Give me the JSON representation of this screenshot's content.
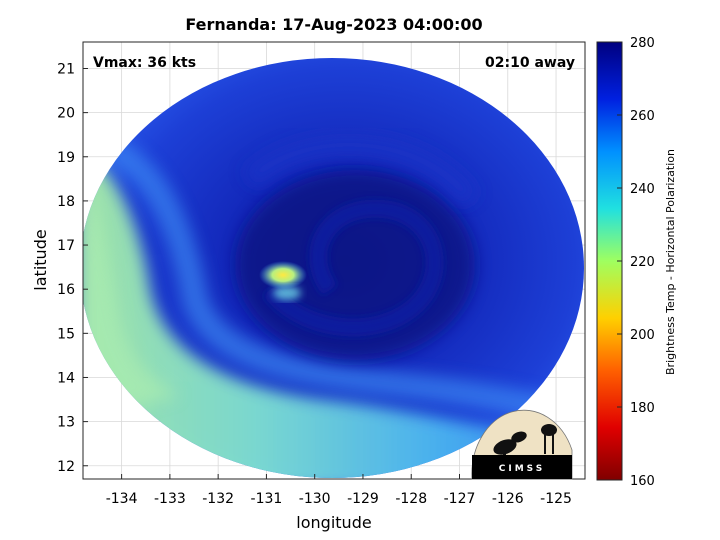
{
  "title": "Fernanda: 17-Aug-2023 04:00:00",
  "overlay": {
    "vmax": "Vmax: 36 kts",
    "away": "02:10 away"
  },
  "axes": {
    "xlabel": "longitude",
    "ylabel": "latitude",
    "xlim": [
      -134.8,
      -124.4
    ],
    "ylim": [
      11.7,
      21.6
    ],
    "xticks": [
      -134,
      -133,
      -132,
      -131,
      -130,
      -129,
      -128,
      -127,
      -126,
      -125
    ],
    "xtick_labels": [
      "-134",
      "-133",
      "-132",
      "-131",
      "-130",
      "-129",
      "-128",
      "-127",
      "-126",
      "-125"
    ],
    "yticks": [
      12,
      13,
      14,
      15,
      16,
      17,
      18,
      19,
      20,
      21
    ],
    "ytick_labels": [
      "12",
      "13",
      "14",
      "15",
      "16",
      "17",
      "18",
      "19",
      "20",
      "21"
    ],
    "grid": true
  },
  "storm": {
    "center_lon": -129.8,
    "center_lat": 16.3,
    "convection_lon": -130.7,
    "convection_lat": 16.3
  },
  "colorbar": {
    "label": "Brightness Temp - Horizontal Polarization",
    "min": 160,
    "max": 280,
    "ticks": [
      160,
      180,
      200,
      220,
      240,
      260,
      280
    ],
    "tick_labels": [
      "160",
      "180",
      "200",
      "220",
      "240",
      "260",
      "280"
    ],
    "colormap": "jet"
  },
  "logo": {
    "text": "CIMSS"
  },
  "colors": {
    "background": "#ffffff",
    "grid": "#d9d9d9",
    "swath_warm": "#1f3ad0",
    "swath_core": "#0d1fa8",
    "swath_edge": "#2b6cf0",
    "cool_band": "#6fd2e8",
    "cool_band_outer": "#9fe7b8",
    "convection": "#ffe940"
  }
}
